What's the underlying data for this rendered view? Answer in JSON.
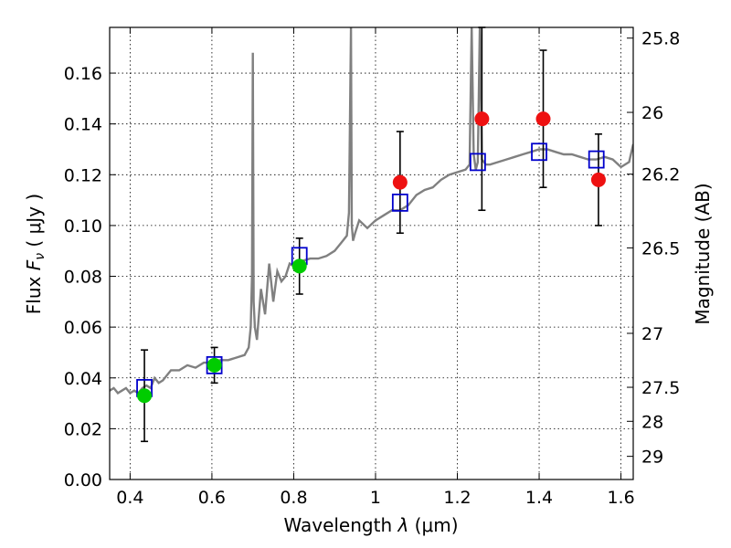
{
  "chart_data": {
    "type": "scatter",
    "xlabel": "Wavelength  λ (μm)",
    "ylabel": "Flux  Fν  ( μJy )",
    "ylabel_parts": {
      "prefix": "Flux  ",
      "symbol": "F",
      "sub": "ν",
      "suffix": "  ( μJy )"
    },
    "xlabel_parts": {
      "prefix": "Wavelength  ",
      "symbol": "λ",
      "suffix": " (μm)"
    },
    "y2label": "Magnitude (AB)",
    "xlim": [
      0.35,
      1.63
    ],
    "ylim": [
      0.0,
      0.178
    ],
    "grid": true,
    "x_ticks": [
      0.4,
      0.6,
      0.8,
      1.0,
      1.2,
      1.4,
      1.6
    ],
    "x_tick_labels": [
      "0.4",
      "0.6",
      "0.8",
      "1",
      "1.2",
      "1.4",
      "1.6"
    ],
    "y_ticks": [
      0.0,
      0.02,
      0.04,
      0.06,
      0.08,
      0.1,
      0.12,
      0.14,
      0.16
    ],
    "y_tick_labels": [
      "0.00",
      "0.02",
      "0.04",
      "0.06",
      "0.08",
      "0.10",
      "0.12",
      "0.14",
      "0.16"
    ],
    "y2_ticks": [
      {
        "label": "25.8",
        "mag": 25.8
      },
      {
        "label": "26",
        "mag": 26.0
      },
      {
        "label": "26.2",
        "mag": 26.2
      },
      {
        "label": "26.5",
        "mag": 26.5
      },
      {
        "label": "27",
        "mag": 27.0
      },
      {
        "label": "27.5",
        "mag": 27.5
      },
      {
        "label": "28",
        "mag": 28.0
      },
      {
        "label": "29",
        "mag": 29.0
      }
    ],
    "series": [
      {
        "kind": "model_spectrum",
        "color": "#808080",
        "x": [
          0.35,
          0.36,
          0.37,
          0.38,
          0.39,
          0.4,
          0.41,
          0.42,
          0.43,
          0.44,
          0.45,
          0.46,
          0.47,
          0.48,
          0.5,
          0.52,
          0.54,
          0.56,
          0.58,
          0.6,
          0.62,
          0.64,
          0.66,
          0.68,
          0.69,
          0.695,
          0.698,
          0.7,
          0.702,
          0.705,
          0.71,
          0.72,
          0.73,
          0.74,
          0.75,
          0.76,
          0.77,
          0.78,
          0.79,
          0.8,
          0.82,
          0.84,
          0.86,
          0.88,
          0.9,
          0.92,
          0.93,
          0.935,
          0.94,
          0.942,
          0.945,
          0.95,
          0.96,
          0.98,
          1.0,
          1.02,
          1.04,
          1.06,
          1.08,
          1.1,
          1.12,
          1.14,
          1.16,
          1.18,
          1.2,
          1.22,
          1.23,
          1.235,
          1.24,
          1.245,
          1.25,
          1.255,
          1.26,
          1.265,
          1.27,
          1.28,
          1.3,
          1.32,
          1.34,
          1.36,
          1.38,
          1.4,
          1.42,
          1.44,
          1.46,
          1.48,
          1.5,
          1.52,
          1.54,
          1.56,
          1.58,
          1.6,
          1.62,
          1.63
        ],
        "y": [
          0.035,
          0.036,
          0.034,
          0.035,
          0.036,
          0.034,
          0.035,
          0.034,
          0.036,
          0.037,
          0.036,
          0.04,
          0.038,
          0.039,
          0.043,
          0.043,
          0.045,
          0.044,
          0.046,
          0.046,
          0.047,
          0.047,
          0.048,
          0.049,
          0.052,
          0.06,
          0.08,
          0.168,
          0.07,
          0.06,
          0.055,
          0.075,
          0.065,
          0.085,
          0.07,
          0.082,
          0.078,
          0.08,
          0.085,
          0.084,
          0.086,
          0.087,
          0.087,
          0.088,
          0.09,
          0.094,
          0.096,
          0.105,
          0.178,
          0.1,
          0.094,
          0.097,
          0.102,
          0.099,
          0.102,
          0.104,
          0.106,
          0.106,
          0.108,
          0.112,
          0.114,
          0.115,
          0.118,
          0.12,
          0.121,
          0.122,
          0.124,
          0.178,
          0.128,
          0.122,
          0.125,
          0.178,
          0.126,
          0.125,
          0.124,
          0.124,
          0.125,
          0.126,
          0.127,
          0.128,
          0.129,
          0.13,
          0.13,
          0.129,
          0.128,
          0.128,
          0.127,
          0.126,
          0.126,
          0.127,
          0.126,
          0.123,
          0.125,
          0.132
        ]
      },
      {
        "kind": "model_photometry",
        "marker": "open-square",
        "color": "#0000cc",
        "x": [
          0.435,
          0.606,
          0.814,
          1.06,
          1.25,
          1.4,
          1.54
        ],
        "y": [
          0.036,
          0.045,
          0.088,
          0.109,
          0.125,
          0.129,
          0.126
        ]
      },
      {
        "kind": "observed_detections",
        "marker": "filled-circle",
        "color": "#00cc00",
        "x": [
          0.435,
          0.606,
          0.814
        ],
        "y": [
          0.033,
          0.045,
          0.084
        ],
        "err": [
          0.018,
          0.007,
          0.011
        ]
      },
      {
        "kind": "observed_red",
        "marker": "filled-circle",
        "color": "#ee1111",
        "x": [
          1.06,
          1.26,
          1.41,
          1.545
        ],
        "y": [
          0.117,
          0.142,
          0.142,
          0.118
        ],
        "err": [
          0.02,
          0.036,
          0.027,
          0.018
        ]
      }
    ]
  }
}
